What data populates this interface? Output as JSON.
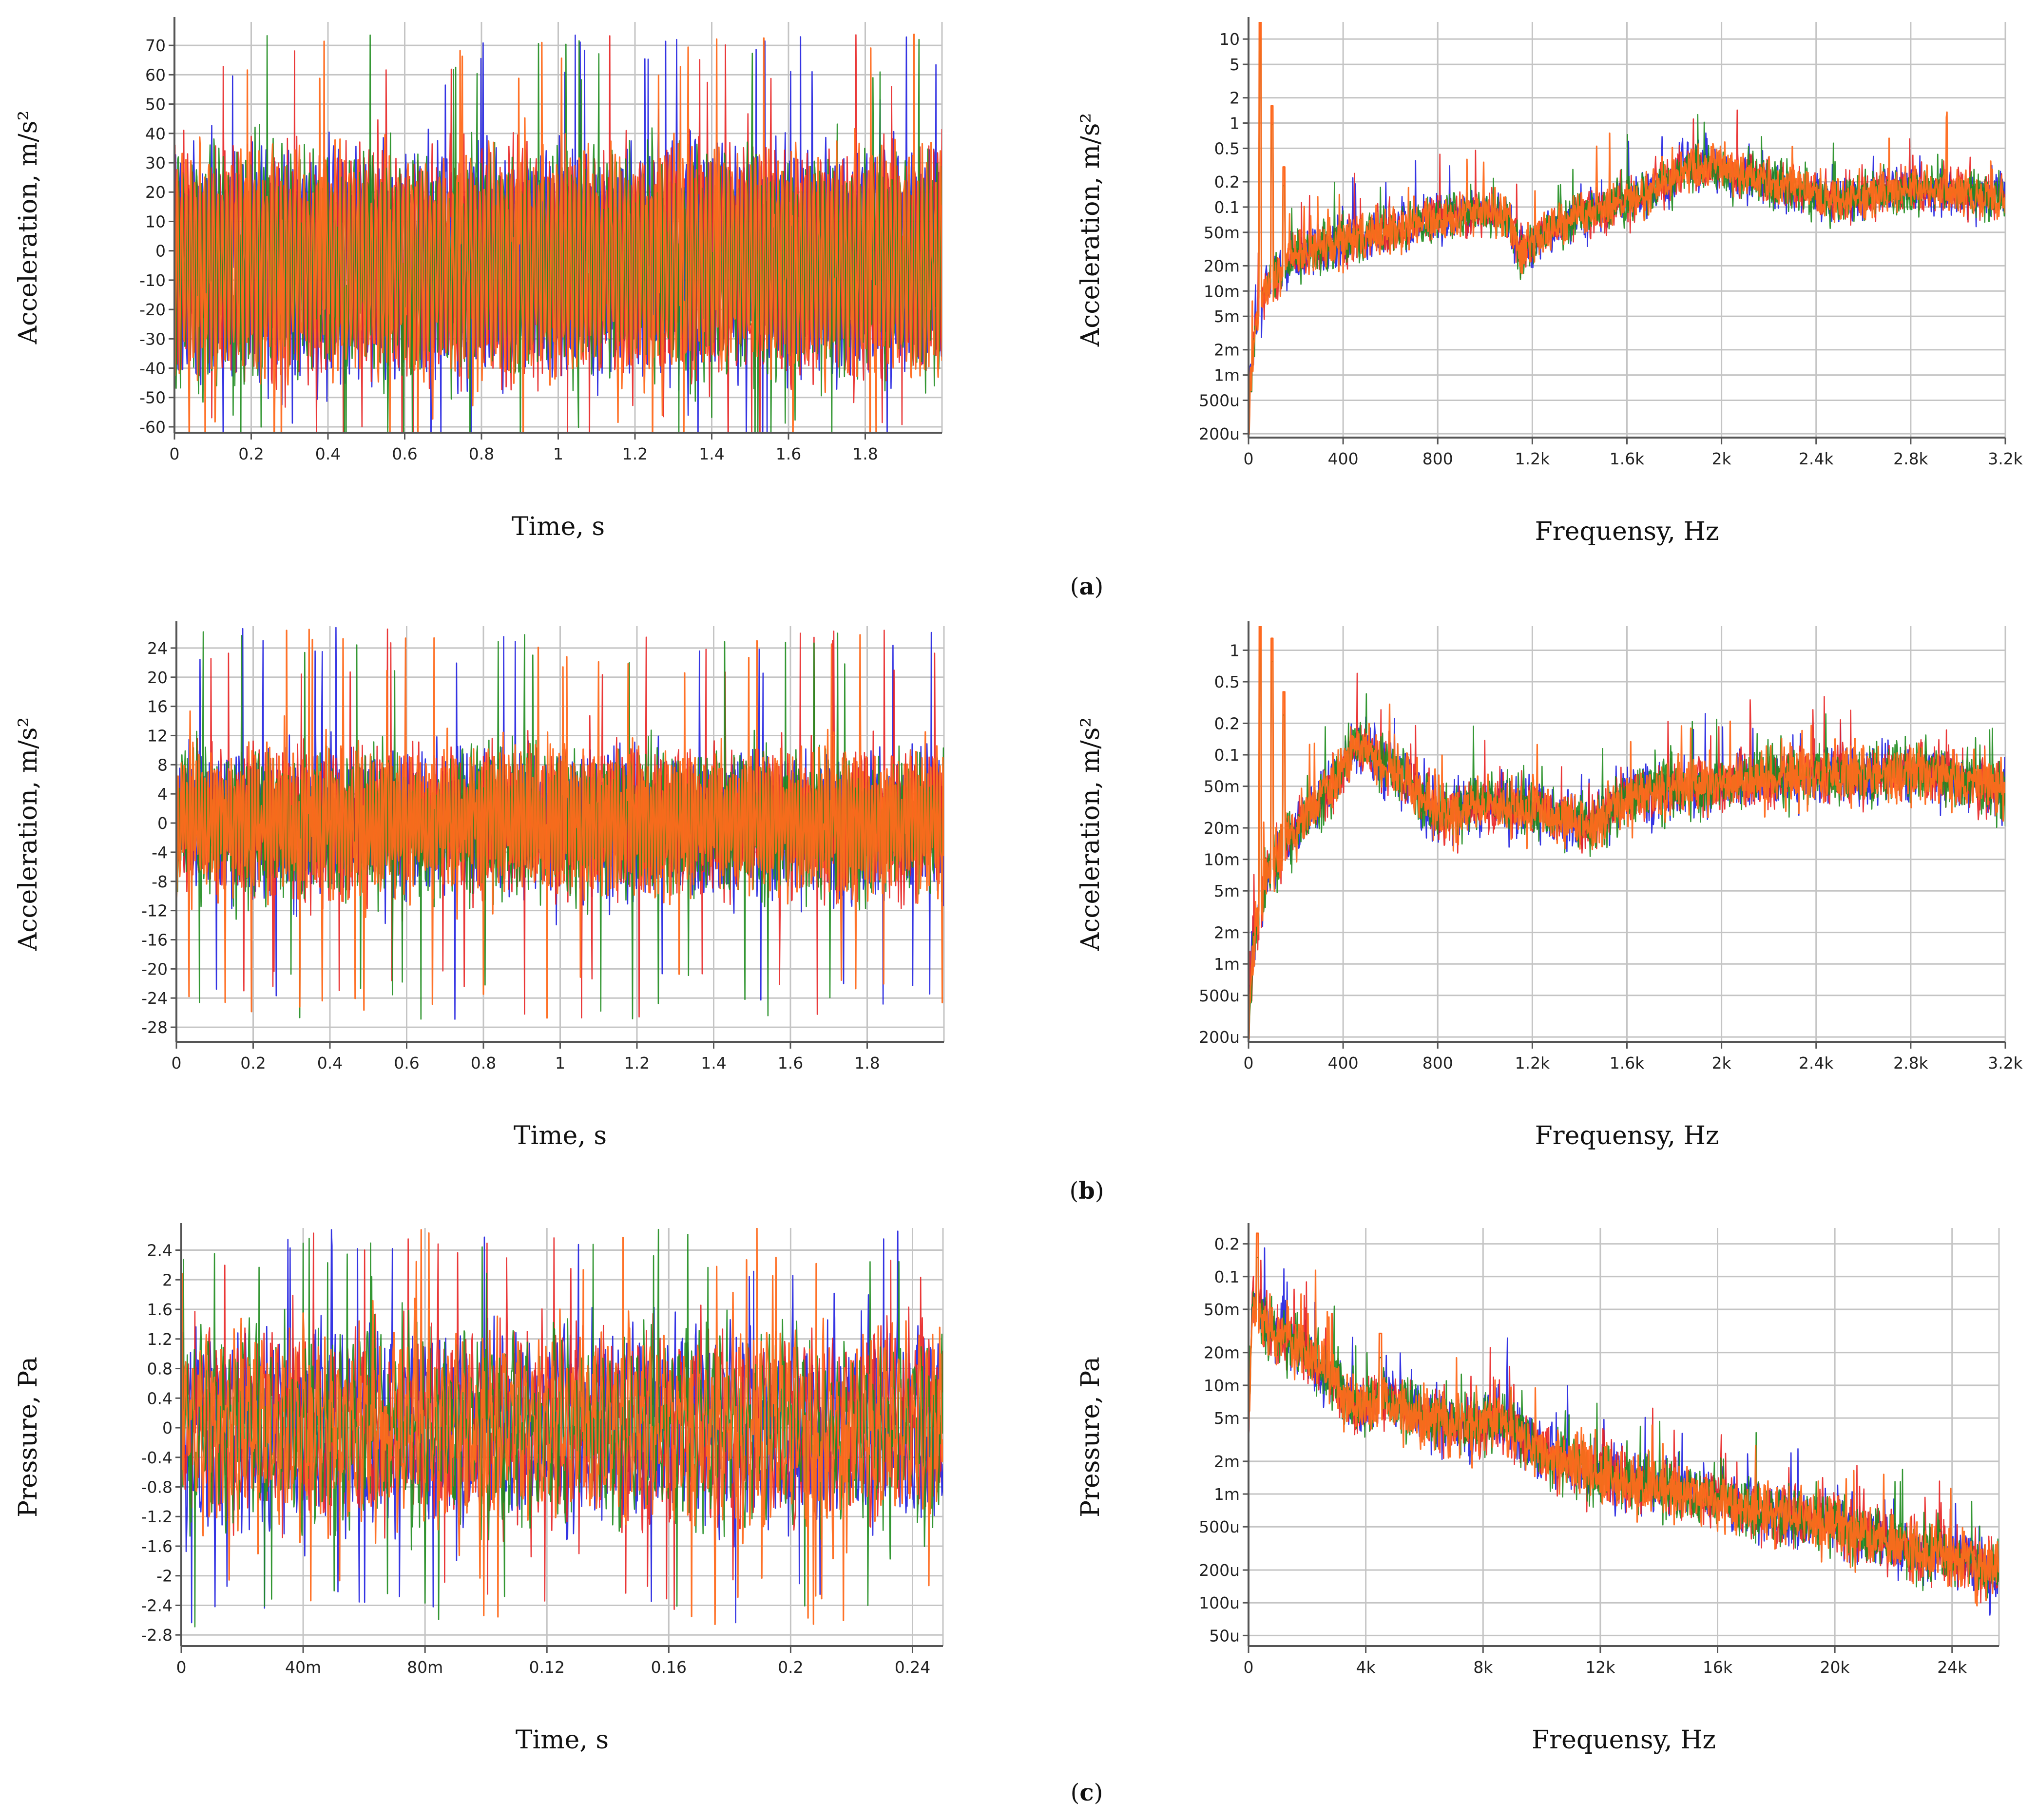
{
  "colors": {
    "series": [
      "#1f1fe0",
      "#e82222",
      "#1e8c1e",
      "#ff6a1c"
    ],
    "grid": "#c4c4c4",
    "axis": "#555555"
  },
  "captions": [
    {
      "open": "(",
      "letter": "a",
      "close": ")"
    },
    {
      "open": "(",
      "letter": "b",
      "close": ")"
    },
    {
      "open": "(",
      "letter": "c",
      "close": ")"
    }
  ],
  "chart_data": [
    {
      "id": "a-time",
      "type": "line",
      "scale": "linear",
      "xlabel": "Time, s",
      "ylabel": "Acceleration, m/s²",
      "xlim": [
        0,
        2.0
      ],
      "ylim": [
        -62,
        78
      ],
      "xticks": [
        0,
        0.2,
        0.4,
        0.6,
        0.8,
        1.0,
        1.2,
        1.4,
        1.6,
        1.8
      ],
      "xtick_labels": [
        "0",
        "0.2",
        "0.4",
        "0.6",
        "0.8",
        "1",
        "1.2",
        "1.4",
        "1.6",
        "1.8"
      ],
      "yticks": [
        70,
        60,
        50,
        40,
        30,
        20,
        10,
        0,
        -10,
        -20,
        -30,
        -40,
        -50,
        -60
      ],
      "ytick_labels": [
        "70",
        "60",
        "50",
        "40",
        "30",
        "20",
        "10",
        "0",
        "-10",
        "-20",
        "-30",
        "-40",
        "-50",
        "-60"
      ],
      "series_profile": {
        "kind": "time",
        "amp": 44,
        "peak": 74,
        "offset": -4,
        "cycles": 170,
        "noise": 0.35
      }
    },
    {
      "id": "a-spectrum",
      "type": "line",
      "scale": "log",
      "xlabel": "Frequensy, Hz",
      "ylabel": "Acceleration, m/s²",
      "xlim": [
        0,
        3200
      ],
      "ylim": [
        0.00018,
        16
      ],
      "xticks": [
        0,
        400,
        800,
        1200,
        1600,
        2000,
        2400,
        2800,
        3200
      ],
      "xtick_labels": [
        "0",
        "400",
        "800",
        "1.2k",
        "1.6k",
        "2k",
        "2.4k",
        "2.8k",
        "3.2k"
      ],
      "yticks": [
        10,
        5,
        2,
        1,
        0.5,
        0.2,
        0.1,
        0.05,
        0.02,
        0.01,
        0.005,
        0.002,
        0.001,
        0.0005,
        0.0002
      ],
      "ytick_labels": [
        "10",
        "5",
        "2",
        "1",
        "0.5",
        "0.2",
        "0.1",
        "50m",
        "20m",
        "10m",
        "5m",
        "2m",
        "1m",
        "500u",
        "200u"
      ],
      "series_profile": {
        "kind": "spectrum",
        "envelope": [
          [
            0,
            0.0003
          ],
          [
            20,
            0.002
          ],
          [
            40,
            0.005
          ],
          [
            80,
            0.012
          ],
          [
            200,
            0.025
          ],
          [
            400,
            0.04
          ],
          [
            700,
            0.06
          ],
          [
            1000,
            0.09
          ],
          [
            1100,
            0.07
          ],
          [
            1150,
            0.028
          ],
          [
            1250,
            0.05
          ],
          [
            1400,
            0.08
          ],
          [
            1700,
            0.14
          ],
          [
            1850,
            0.3
          ],
          [
            2000,
            0.28
          ],
          [
            2200,
            0.2
          ],
          [
            2500,
            0.12
          ],
          [
            2800,
            0.17
          ],
          [
            3200,
            0.13
          ]
        ],
        "spikes": [
          [
            50,
            16
          ],
          [
            100,
            1.6
          ],
          [
            150,
            0.3
          ]
        ]
      }
    },
    {
      "id": "b-time",
      "type": "line",
      "scale": "linear",
      "xlabel": "Time, s",
      "ylabel": "Acceleration, m/s²",
      "xlim": [
        0,
        2.0
      ],
      "ylim": [
        -30,
        27
      ],
      "xticks": [
        0,
        0.2,
        0.4,
        0.6,
        0.8,
        1.0,
        1.2,
        1.4,
        1.6,
        1.8
      ],
      "xtick_labels": [
        "0",
        "0.2",
        "0.4",
        "0.6",
        "0.8",
        "1",
        "1.2",
        "1.4",
        "1.6",
        "1.8"
      ],
      "yticks": [
        24,
        20,
        16,
        12,
        8,
        4,
        0,
        -4,
        -8,
        -12,
        -16,
        -20,
        -24,
        -28
      ],
      "ytick_labels": [
        "24",
        "20",
        "16",
        "12",
        "8",
        "4",
        "0",
        "-4",
        "-8",
        "-12",
        "-16",
        "-20",
        "-24",
        "-28"
      ],
      "series_profile": {
        "kind": "time",
        "amp": 10,
        "peak": 27,
        "offset": 0,
        "cycles": 260,
        "noise": 0.6
      }
    },
    {
      "id": "b-spectrum",
      "type": "line",
      "scale": "log",
      "xlabel": "Frequensy, Hz",
      "ylabel": "Acceleration, m/s²",
      "xlim": [
        0,
        3200
      ],
      "ylim": [
        0.00018,
        1.7
      ],
      "xticks": [
        0,
        400,
        800,
        1200,
        1600,
        2000,
        2400,
        2800,
        3200
      ],
      "xtick_labels": [
        "0",
        "400",
        "800",
        "1.2k",
        "1.6k",
        "2k",
        "2.4k",
        "2.8k",
        "3.2k"
      ],
      "yticks": [
        1,
        0.5,
        0.2,
        0.1,
        0.05,
        0.02,
        0.01,
        0.005,
        0.002,
        0.001,
        0.0005,
        0.0002
      ],
      "ytick_labels": [
        "1",
        "0.5",
        "0.2",
        "0.1",
        "50m",
        "20m",
        "10m",
        "5m",
        "2m",
        "1m",
        "500u",
        "200u"
      ],
      "series_profile": {
        "kind": "spectrum",
        "envelope": [
          [
            0,
            0.0003
          ],
          [
            30,
            0.002
          ],
          [
            80,
            0.007
          ],
          [
            200,
            0.02
          ],
          [
            350,
            0.05
          ],
          [
            450,
            0.12
          ],
          [
            550,
            0.09
          ],
          [
            700,
            0.05
          ],
          [
            800,
            0.025
          ],
          [
            1000,
            0.035
          ],
          [
            1200,
            0.03
          ],
          [
            1450,
            0.02
          ],
          [
            1600,
            0.04
          ],
          [
            1900,
            0.05
          ],
          [
            2200,
            0.06
          ],
          [
            2500,
            0.065
          ],
          [
            2900,
            0.07
          ],
          [
            3200,
            0.045
          ]
        ],
        "spikes": [
          [
            50,
            1.7
          ],
          [
            100,
            1.3
          ],
          [
            150,
            0.4
          ]
        ]
      }
    },
    {
      "id": "c-time",
      "type": "line",
      "scale": "linear",
      "xlabel": "Time, s",
      "ylabel": "Pressure, Pa",
      "xlim": [
        0,
        0.25
      ],
      "ylim": [
        -2.95,
        2.7
      ],
      "xticks": [
        0,
        0.04,
        0.08,
        0.12,
        0.16,
        0.2,
        0.24
      ],
      "xtick_labels": [
        "0",
        "40m",
        "80m",
        "0.12",
        "0.16",
        "0.2",
        "0.24"
      ],
      "yticks": [
        2.4,
        2.0,
        1.6,
        1.2,
        0.8,
        0.4,
        0,
        -0.4,
        -0.8,
        -1.2,
        -1.6,
        -2.0,
        -2.4,
        -2.8
      ],
      "ytick_labels": [
        "2.4",
        "2",
        "1.6",
        "1.2",
        "0.8",
        "0.4",
        "0",
        "-0.4",
        "-0.8",
        "-1.2",
        "-1.6",
        "-2",
        "-2.4",
        "-2.8"
      ],
      "series_profile": {
        "kind": "time",
        "amp": 1.1,
        "peak": 2.7,
        "offset": 0,
        "cycles": 110,
        "noise": 0.8
      }
    },
    {
      "id": "c-spectrum",
      "type": "line",
      "scale": "log",
      "xlabel": "Frequensy, Hz",
      "ylabel": "Pressure, Pa",
      "xlim": [
        0,
        25600
      ],
      "ylim": [
        4e-05,
        0.28
      ],
      "xticks": [
        0,
        4000,
        8000,
        12000,
        16000,
        20000,
        24000
      ],
      "xtick_labels": [
        "0",
        "4k",
        "8k",
        "12k",
        "16k",
        "20k",
        "24k"
      ],
      "yticks": [
        0.2,
        0.1,
        0.05,
        0.02,
        0.01,
        0.005,
        0.002,
        0.001,
        0.0005,
        0.0002,
        0.0001,
        5e-05
      ],
      "ytick_labels": [
        "0.2",
        "0.1",
        "50m",
        "20m",
        "10m",
        "5m",
        "2m",
        "1m",
        "500u",
        "200u",
        "100u",
        "50u"
      ],
      "series_profile": {
        "kind": "spectrum",
        "envelope": [
          [
            0,
            0.004
          ],
          [
            150,
            0.06
          ],
          [
            600,
            0.035
          ],
          [
            2000,
            0.02
          ],
          [
            3800,
            0.006
          ],
          [
            4600,
            0.008
          ],
          [
            6000,
            0.005
          ],
          [
            8000,
            0.004
          ],
          [
            8500,
            0.005
          ],
          [
            10000,
            0.0025
          ],
          [
            12000,
            0.0015
          ],
          [
            16000,
            0.0009
          ],
          [
            20000,
            0.0005
          ],
          [
            24000,
            0.00025
          ],
          [
            25600,
            0.00018
          ]
        ],
        "spikes": [
          [
            300,
            0.25
          ],
          [
            4500,
            0.03
          ]
        ]
      }
    }
  ]
}
